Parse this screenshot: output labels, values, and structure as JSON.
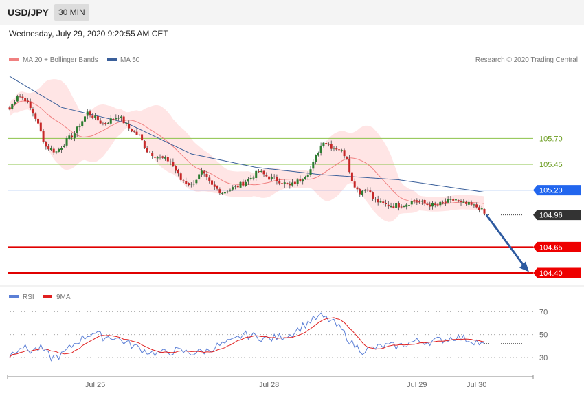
{
  "header": {
    "symbol": "USD/JPY",
    "timeframe": "30 MIN"
  },
  "timestamp": "Wednesday, July 29, 2020 9:20:55 AM CET",
  "legend": {
    "items": [
      {
        "label": "MA 20 + Bollinger Bands",
        "color": "#f08080"
      },
      {
        "label": "MA 50",
        "color": "#3a5f9a"
      }
    ],
    "credit": "Research © 2020 Trading Central"
  },
  "rsi_legend": {
    "items": [
      {
        "label": "RSI",
        "color": "#5b7fd6"
      },
      {
        "label": "9MA",
        "color": "#e02020"
      }
    ]
  },
  "chart_data": [
    {
      "type": "candlestick",
      "ylim": [
        104.28,
        106.4
      ],
      "x_labels": [
        "Jul 25",
        "Jul 28",
        "Jul 29",
        "Jul 30"
      ],
      "levels": [
        {
          "value": 105.7,
          "label": "105.70",
          "color": "#8bc34a",
          "style": "resistance"
        },
        {
          "value": 105.45,
          "label": "105.45",
          "color": "#8bc34a",
          "style": "resistance"
        },
        {
          "value": 105.2,
          "label": "105.20",
          "color": "#2266dd",
          "style": "pivot"
        },
        {
          "value": 104.96,
          "label": "104.96",
          "color": "#333333",
          "style": "current"
        },
        {
          "value": 104.65,
          "label": "104.65",
          "color": "#e00000",
          "style": "support"
        },
        {
          "value": 104.4,
          "label": "104.40",
          "color": "#e00000",
          "style": "support"
        }
      ],
      "close_anchors": [
        [
          0,
          105.98
        ],
        [
          3,
          106.12
        ],
        [
          6,
          106.08
        ],
        [
          10,
          105.9
        ],
        [
          14,
          105.62
        ],
        [
          18,
          105.57
        ],
        [
          22,
          105.68
        ],
        [
          25,
          105.75
        ],
        [
          30,
          105.95
        ],
        [
          36,
          105.84
        ],
        [
          42,
          105.92
        ],
        [
          46,
          105.8
        ],
        [
          50,
          105.72
        ],
        [
          53,
          105.58
        ],
        [
          57,
          105.52
        ],
        [
          62,
          105.48
        ],
        [
          66,
          105.3
        ],
        [
          70,
          105.25
        ],
        [
          74,
          105.37
        ],
        [
          78,
          105.24
        ],
        [
          82,
          105.18
        ],
        [
          88,
          105.24
        ],
        [
          92,
          105.3
        ],
        [
          96,
          105.38
        ],
        [
          100,
          105.32
        ],
        [
          104,
          105.29
        ],
        [
          108,
          105.24
        ],
        [
          112,
          105.3
        ],
        [
          116,
          105.4
        ],
        [
          119,
          105.58
        ],
        [
          121,
          105.68
        ],
        [
          124,
          105.62
        ],
        [
          127,
          105.6
        ],
        [
          130,
          105.52
        ],
        [
          132,
          105.28
        ],
        [
          135,
          105.18
        ],
        [
          138,
          105.22
        ],
        [
          140,
          105.12
        ],
        [
          144,
          105.06
        ],
        [
          148,
          105.05
        ],
        [
          152,
          105.06
        ],
        [
          156,
          105.1
        ],
        [
          160,
          105.07
        ],
        [
          164,
          105.05
        ],
        [
          168,
          105.08
        ],
        [
          172,
          105.11
        ],
        [
          174,
          105.07
        ],
        [
          177,
          105.06
        ],
        [
          181,
          105.03
        ],
        [
          183,
          104.97
        ]
      ],
      "ma50_anchors": [
        [
          0,
          106.3
        ],
        [
          20,
          106.0
        ],
        [
          45,
          105.85
        ],
        [
          70,
          105.55
        ],
        [
          95,
          105.42
        ],
        [
          120,
          105.35
        ],
        [
          150,
          105.3
        ],
        [
          183,
          105.18
        ]
      ]
    },
    {
      "type": "line",
      "name": "RSI",
      "ylim": [
        15,
        78
      ],
      "y_ticks": [
        30,
        50,
        70
      ],
      "rsi_anchors": [
        [
          0,
          32
        ],
        [
          4,
          40
        ],
        [
          8,
          36
        ],
        [
          12,
          38
        ],
        [
          16,
          30
        ],
        [
          20,
          32
        ],
        [
          26,
          44
        ],
        [
          32,
          52
        ],
        [
          36,
          48
        ],
        [
          40,
          48
        ],
        [
          44,
          44
        ],
        [
          48,
          40
        ],
        [
          52,
          36
        ],
        [
          56,
          34
        ],
        [
          60,
          34
        ],
        [
          64,
          36
        ],
        [
          70,
          34
        ],
        [
          76,
          36
        ],
        [
          80,
          40
        ],
        [
          86,
          44
        ],
        [
          90,
          50
        ],
        [
          96,
          48
        ],
        [
          100,
          46
        ],
        [
          104,
          48
        ],
        [
          108,
          50
        ],
        [
          112,
          56
        ],
        [
          116,
          62
        ],
        [
          120,
          66
        ],
        [
          124,
          62
        ],
        [
          128,
          54
        ],
        [
          132,
          42
        ],
        [
          136,
          36
        ],
        [
          140,
          38
        ],
        [
          144,
          40
        ],
        [
          150,
          40
        ],
        [
          156,
          44
        ],
        [
          162,
          44
        ],
        [
          168,
          46
        ],
        [
          172,
          48
        ],
        [
          176,
          46
        ],
        [
          180,
          44
        ],
        [
          183,
          40
        ]
      ]
    }
  ]
}
